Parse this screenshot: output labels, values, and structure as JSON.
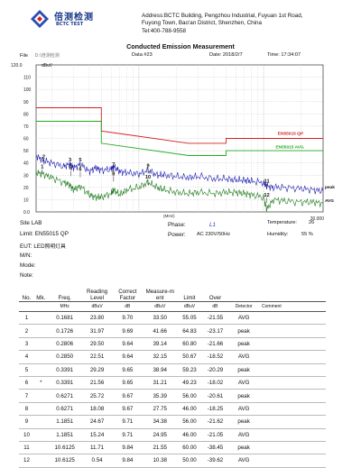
{
  "header": {
    "logo_cn": "倍测检测",
    "logo_en": "BCTC TEST",
    "address_lines": [
      "Address:BCTC Building, Pengzhou Industrial, Fuyuan 1st Road,",
      "Fuyong Town, Bao'an District, Shenzhen, China",
      "Tel:400-788-9558"
    ],
    "report_title": "Conducted Emission Measurement",
    "file_label": "File",
    "file_value": "D:\\倍测检测",
    "data_label": "Data #23",
    "date_label": "Date: 2018/2/7",
    "time_label": "Time: 17:34:07"
  },
  "chart_data": {
    "type": "line",
    "ylabel": "dBuV",
    "y_top_label": "120.0",
    "x_unit_label": "(MHz)",
    "x_right_label": "30.000",
    "xscale": "log",
    "xlim": [
      0.15,
      30
    ],
    "ylim": [
      0,
      120
    ],
    "y_ticks": [
      0,
      10,
      20,
      30,
      40,
      50,
      60,
      70,
      80,
      90,
      100,
      110
    ],
    "y_tick_labels": [
      "0.0",
      "10",
      "20",
      "30",
      "40",
      "50",
      "60",
      "70",
      "80",
      "90",
      "100",
      "110"
    ],
    "grid": true,
    "limit_lines": [
      {
        "name": "EN55015 QP",
        "color": "#d42020",
        "points": [
          [
            0.15,
            85
          ],
          [
            0.5,
            85
          ],
          [
            0.5,
            66
          ],
          [
            2.51,
            56
          ],
          [
            5.0,
            56
          ],
          [
            5.0,
            60
          ],
          [
            30,
            60
          ]
        ]
      },
      {
        "name": "EN55015 AVG",
        "color": "#22aa22",
        "points": [
          [
            0.15,
            74
          ],
          [
            0.5,
            74
          ],
          [
            0.5,
            56
          ],
          [
            2.51,
            46
          ],
          [
            5.0,
            46
          ],
          [
            5.0,
            50
          ],
          [
            30,
            50
          ]
        ]
      }
    ],
    "series": [
      {
        "name": "peak",
        "color": "#2020b0",
        "points": [
          [
            0.15,
            46
          ],
          [
            0.17,
            42
          ],
          [
            0.2,
            40
          ],
          [
            0.25,
            37
          ],
          [
            0.28,
            39
          ],
          [
            0.3,
            36
          ],
          [
            0.34,
            39
          ],
          [
            0.4,
            33
          ],
          [
            0.45,
            36
          ],
          [
            0.5,
            34
          ],
          [
            0.6,
            35
          ],
          [
            0.63,
            37
          ],
          [
            0.7,
            33
          ],
          [
            0.8,
            32
          ],
          [
            1.0,
            31
          ],
          [
            1.19,
            34
          ],
          [
            1.4,
            30
          ],
          [
            1.6,
            30
          ],
          [
            2.0,
            29
          ],
          [
            2.5,
            28
          ],
          [
            3.0,
            29
          ],
          [
            4.0,
            27
          ],
          [
            5.0,
            27
          ],
          [
            6.0,
            26
          ],
          [
            7.0,
            26
          ],
          [
            8.0,
            25
          ],
          [
            10.0,
            24
          ],
          [
            10.6,
            21
          ],
          [
            12.0,
            20
          ],
          [
            15.0,
            20
          ],
          [
            20.0,
            19
          ],
          [
            25.0,
            18
          ],
          [
            30.0,
            17
          ]
        ]
      },
      {
        "name": "AVG",
        "color": "#1f7a1f",
        "points": [
          [
            0.15,
            32
          ],
          [
            0.17,
            31
          ],
          [
            0.2,
            28
          ],
          [
            0.25,
            24
          ],
          [
            0.28,
            22
          ],
          [
            0.3,
            18
          ],
          [
            0.34,
            21
          ],
          [
            0.4,
            14
          ],
          [
            0.45,
            12
          ],
          [
            0.5,
            12
          ],
          [
            0.6,
            15
          ],
          [
            0.63,
            18
          ],
          [
            0.7,
            14
          ],
          [
            0.8,
            18
          ],
          [
            1.0,
            20
          ],
          [
            1.19,
            24
          ],
          [
            1.4,
            20
          ],
          [
            1.6,
            18
          ],
          [
            2.0,
            16
          ],
          [
            2.5,
            15
          ],
          [
            3.0,
            16
          ],
          [
            4.0,
            15
          ],
          [
            5.0,
            16
          ],
          [
            6.0,
            16
          ],
          [
            7.0,
            15
          ],
          [
            8.0,
            14
          ],
          [
            10.0,
            12
          ],
          [
            10.6,
            2
          ],
          [
            12.0,
            10
          ],
          [
            15.0,
            9
          ],
          [
            20.0,
            8
          ],
          [
            25.0,
            8
          ],
          [
            30.0,
            7
          ]
        ]
      }
    ],
    "markers": [
      {
        "label": "1",
        "x": 0.1681,
        "y": 33.5
      },
      {
        "label": "2",
        "x": 0.1726,
        "y": 41.66
      },
      {
        "label": "3",
        "x": 0.2806,
        "y": 39.14
      },
      {
        "label": "4",
        "x": 0.285,
        "y": 32.15
      },
      {
        "label": "5",
        "x": 0.3391,
        "y": 38.94
      },
      {
        "label": "6",
        "x": 0.3391,
        "y": 31.21
      },
      {
        "label": "7",
        "x": 0.6271,
        "y": 35.39
      },
      {
        "label": "8",
        "x": 0.6271,
        "y": 27.75
      },
      {
        "label": "9",
        "x": 1.1851,
        "y": 34.38
      },
      {
        "label": "10",
        "x": 1.1851,
        "y": 24.95
      },
      {
        "label": "11",
        "x": 10.6125,
        "y": 21.55
      },
      {
        "label": "12",
        "x": 10.6125,
        "y": 10.38
      }
    ],
    "line_labels": [
      {
        "text": "EN55015 QP",
        "color": "#d42020",
        "x": 13,
        "y": 63
      },
      {
        "text": "EN55015 AVG",
        "color": "#22aa22",
        "x": 12.5,
        "y": 52
      },
      {
        "text": "peak",
        "color": "#111111",
        "x": 31,
        "y": 19
      },
      {
        "text": "AVG",
        "color": "#111111",
        "x": 31,
        "y": 8
      }
    ]
  },
  "info": {
    "site": "Site  LAB",
    "limit": "Limit: EN55015  QP",
    "eut_prefix": "EUT:  LED",
    "eut_cn": "照明灯具",
    "mn": "M/N:",
    "mode": "Mode:",
    "note": "Note:",
    "phase_label": "Phase:",
    "phase_value": "L1",
    "power_label": "Power:",
    "power_value": "AC 230V/50Hz",
    "temperature_label": "Temperature:",
    "temperature_value": "26",
    "humidity_label": "Humidity:",
    "humidity_value": "55 %"
  },
  "table": {
    "headers": [
      "No.",
      "Mk.",
      "Freq.",
      "Reading Level",
      "Correct Factor",
      "Measure-ment",
      "Limit",
      "Over",
      "",
      ""
    ],
    "header_html": [
      "No.",
      "Mk.",
      "Freq.",
      "Reading\nLevel",
      "Correct\nFactor",
      "Measure-\nment",
      "Limit",
      "Over",
      "",
      ""
    ],
    "units": [
      "",
      "",
      "MHz",
      "dBuV",
      "dB",
      "dBuV",
      "dBuV",
      "dB",
      "Detector",
      "Comment"
    ],
    "rows": [
      [
        "1",
        "",
        "0.1681",
        "23.80",
        "9.70",
        "33.50",
        "55.05",
        "-21.55",
        "AVG",
        ""
      ],
      [
        "2",
        "",
        "0.1726",
        "31.97",
        "9.69",
        "41.66",
        "64.83",
        "-23.17",
        "peak",
        ""
      ],
      [
        "3",
        "",
        "0.2806",
        "29.50",
        "9.64",
        "39.14",
        "60.80",
        "-21.66",
        "peak",
        ""
      ],
      [
        "4",
        "",
        "0.2850",
        "22.51",
        "9.64",
        "32.15",
        "50.67",
        "-18.52",
        "AVG",
        ""
      ],
      [
        "5",
        "",
        "0.3391",
        "29.29",
        "9.65",
        "38.94",
        "59.23",
        "-20.29",
        "peak",
        ""
      ],
      [
        "6",
        "*",
        "0.3391",
        "21.56",
        "9.65",
        "31.21",
        "49.23",
        "-18.02",
        "AVG",
        ""
      ],
      [
        "7",
        "",
        "0.6271",
        "25.72",
        "9.67",
        "35.39",
        "56.00",
        "-20.61",
        "peak",
        ""
      ],
      [
        "8",
        "",
        "0.6271",
        "18.08",
        "9.67",
        "27.75",
        "46.00",
        "-18.25",
        "AVG",
        ""
      ],
      [
        "9",
        "",
        "1.1851",
        "24.67",
        "9.71",
        "34.38",
        "56.00",
        "-21.62",
        "peak",
        ""
      ],
      [
        "10",
        "",
        "1.1851",
        "15.24",
        "9.71",
        "24.95",
        "46.00",
        "-21.05",
        "AVG",
        ""
      ],
      [
        "11",
        "",
        "10.6125",
        "11.71",
        "9.84",
        "21.55",
        "60.00",
        "-38.45",
        "peak",
        ""
      ],
      [
        "12",
        "",
        "10.6125",
        "0.54",
        "9.84",
        "10.38",
        "50.00",
        "-39.62",
        "AVG",
        ""
      ]
    ]
  }
}
